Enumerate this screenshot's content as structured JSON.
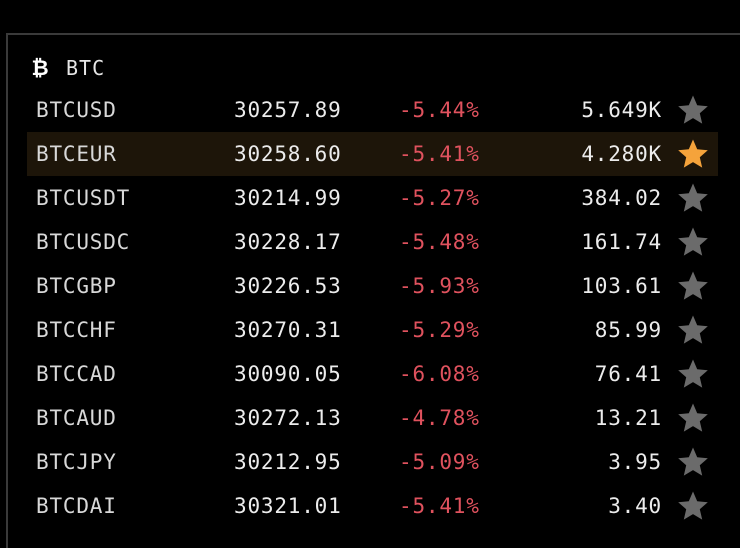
{
  "group": {
    "icon": "bitcoin-icon",
    "label": "BTC"
  },
  "colors": {
    "background": "#000000",
    "negative": "#e0525e",
    "star_active": "#f5a33b",
    "star_inactive": "#6b6b6b",
    "highlight_row": "#1d1509"
  },
  "rows": [
    {
      "symbol": "BTCUSD",
      "price": "30257.89",
      "change": "-5.44%",
      "volume": "5.649K",
      "favorite": false,
      "highlighted": false
    },
    {
      "symbol": "BTCEUR",
      "price": "30258.60",
      "change": "-5.41%",
      "volume": "4.280K",
      "favorite": true,
      "highlighted": true
    },
    {
      "symbol": "BTCUSDT",
      "price": "30214.99",
      "change": "-5.27%",
      "volume": "384.02",
      "favorite": false,
      "highlighted": false
    },
    {
      "symbol": "BTCUSDC",
      "price": "30228.17",
      "change": "-5.48%",
      "volume": "161.74",
      "favorite": false,
      "highlighted": false
    },
    {
      "symbol": "BTCGBP",
      "price": "30226.53",
      "change": "-5.93%",
      "volume": "103.61",
      "favorite": false,
      "highlighted": false
    },
    {
      "symbol": "BTCCHF",
      "price": "30270.31",
      "change": "-5.29%",
      "volume": "85.99",
      "favorite": false,
      "highlighted": false
    },
    {
      "symbol": "BTCCAD",
      "price": "30090.05",
      "change": "-6.08%",
      "volume": "76.41",
      "favorite": false,
      "highlighted": false
    },
    {
      "symbol": "BTCAUD",
      "price": "30272.13",
      "change": "-4.78%",
      "volume": "13.21",
      "favorite": false,
      "highlighted": false
    },
    {
      "symbol": "BTCJPY",
      "price": "30212.95",
      "change": "-5.09%",
      "volume": "3.95",
      "favorite": false,
      "highlighted": false
    },
    {
      "symbol": "BTCDAI",
      "price": "30321.01",
      "change": "-5.41%",
      "volume": "3.40",
      "favorite": false,
      "highlighted": false
    }
  ]
}
